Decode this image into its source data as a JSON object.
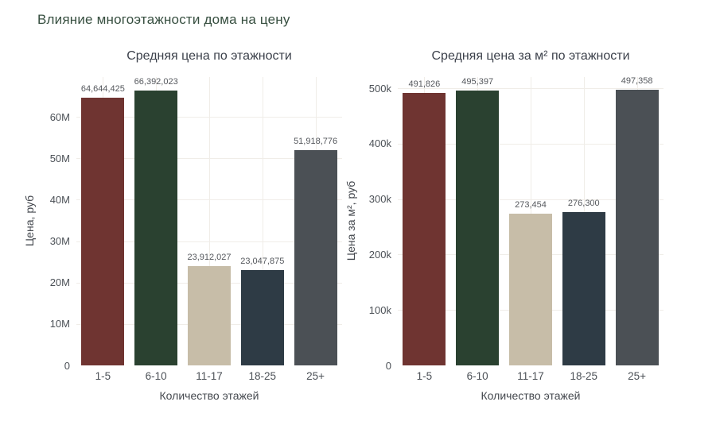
{
  "page": {
    "title": "Влияние многоэтажности дома на цену",
    "title_color": "#374F40"
  },
  "chart_data": [
    {
      "type": "bar",
      "title": "Средняя цена по этажности",
      "xlabel": "Количество этажей",
      "ylabel": "Цена, руб",
      "categories": [
        "1-5",
        "6-10",
        "11-17",
        "18-25",
        "25+"
      ],
      "values": [
        64644425,
        66392023,
        23912027,
        23047875,
        51918776
      ],
      "value_labels": [
        "64,644,425",
        "66,392,023",
        "23,912,027",
        "23,047,875",
        "51,918,776"
      ],
      "ylim": [
        0,
        69600000
      ],
      "yticks": [
        0,
        10000000,
        20000000,
        30000000,
        40000000,
        50000000,
        60000000
      ],
      "ytick_labels": [
        "0",
        "10M",
        "20M",
        "30M",
        "40M",
        "50M",
        "60M"
      ],
      "bar_colors": [
        "#6F3431",
        "#2A4130",
        "#C7BDA8",
        "#2E3B45",
        "#4B5055"
      ],
      "grid": true,
      "legend": "none"
    },
    {
      "type": "bar",
      "title": "Средняя цена за м² по этажности",
      "xlabel": "Количество этажей",
      "ylabel": "Цена за м², руб",
      "categories": [
        "1-5",
        "6-10",
        "11-17",
        "18-25",
        "25+"
      ],
      "values": [
        491826,
        495397,
        273454,
        276300,
        497358
      ],
      "value_labels": [
        "491,826",
        "495,397",
        "273,454",
        "276,300",
        "497,358"
      ],
      "ylim": [
        0,
        520000
      ],
      "yticks": [
        0,
        100000,
        200000,
        300000,
        400000,
        500000
      ],
      "ytick_labels": [
        "0",
        "100k",
        "200k",
        "300k",
        "400k",
        "500k"
      ],
      "bar_colors": [
        "#6F3431",
        "#2A4130",
        "#C7BDA8",
        "#2E3B45",
        "#4B5055"
      ],
      "grid": true,
      "legend": "none"
    }
  ]
}
